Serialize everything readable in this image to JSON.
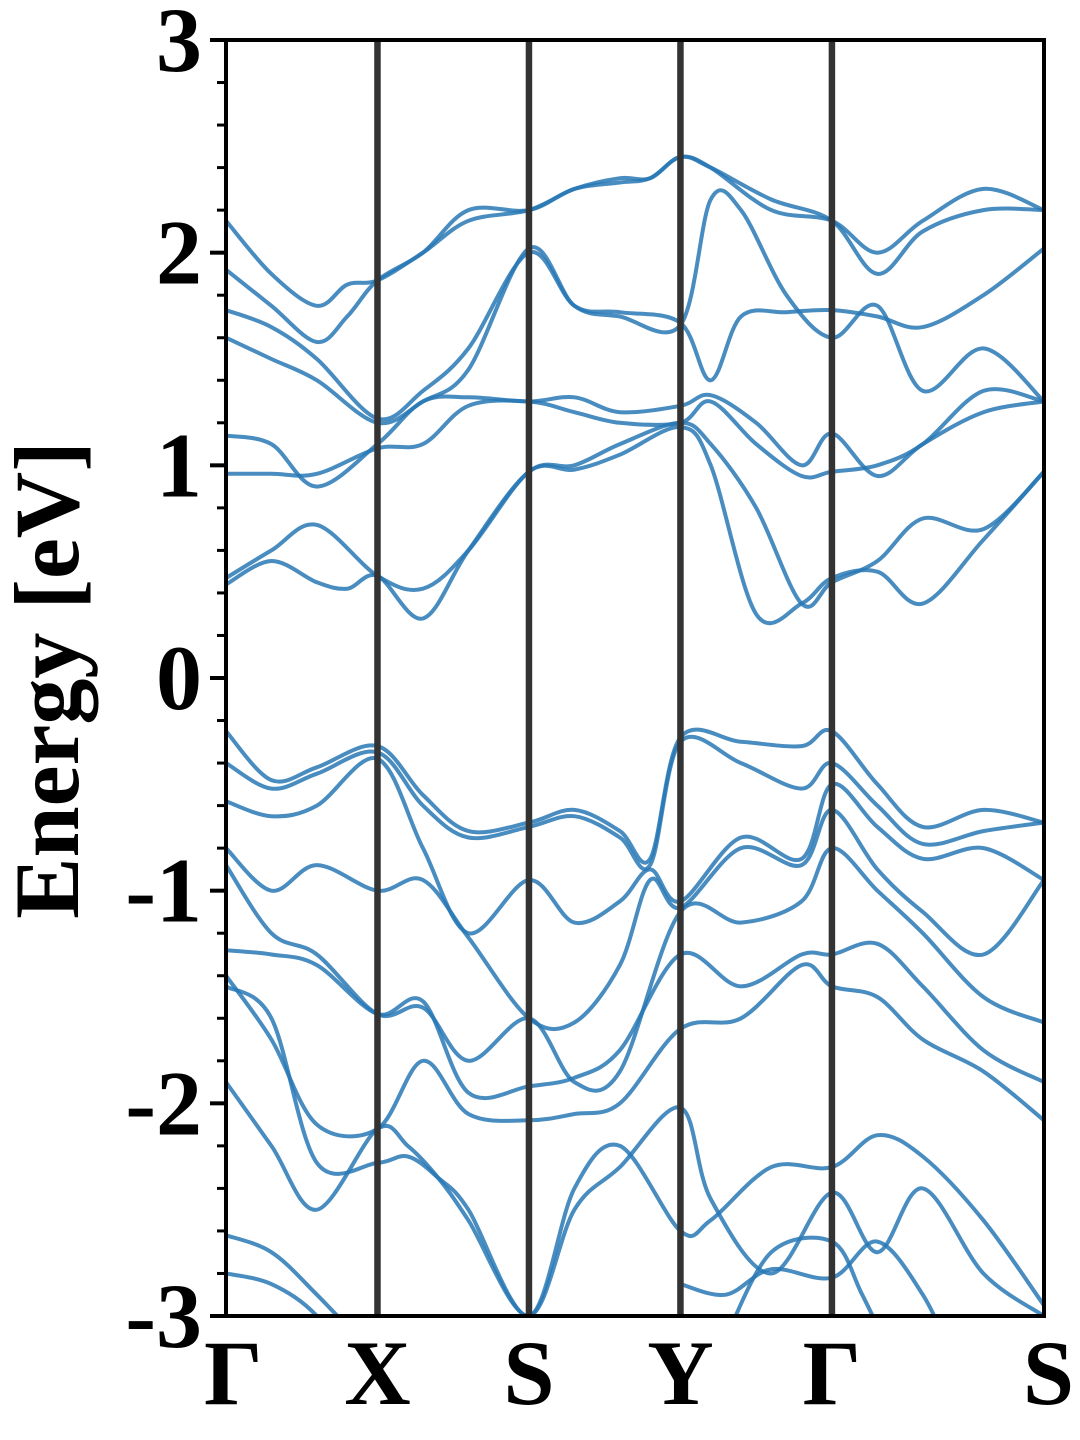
{
  "chart_data": {
    "type": "line",
    "title": "",
    "xlabel": "",
    "ylabel": "Energy [eV]",
    "ylim": [
      -3,
      3
    ],
    "yticks": [
      -3,
      -2,
      -1,
      0,
      1,
      2,
      3
    ],
    "ytick_labels": [
      "-3",
      "-2",
      "-1",
      "0",
      "1",
      "2",
      "3"
    ],
    "y_minor_step": 0.2,
    "grid": false,
    "legend": "none",
    "kpath": {
      "labels": [
        "Γ",
        "X",
        "S",
        "Y",
        "Γ",
        "S"
      ],
      "positions": [
        0,
        1,
        2,
        3,
        4,
        5.4
      ]
    },
    "band_color": "#2878b5",
    "hsp_line_color": "#333333",
    "series": [
      {
        "x": [
          0,
          0.3,
          0.6,
          0.8,
          1,
          1.3,
          1.6,
          2,
          2.3,
          2.6,
          2.8,
          3,
          3.2,
          3.6,
          4,
          4.3,
          4.6,
          5,
          5.4
        ],
        "values": [
          2.15,
          1.9,
          1.75,
          1.85,
          1.87,
          2.0,
          2.15,
          2.2,
          2.3,
          2.35,
          2.35,
          2.45,
          2.4,
          2.2,
          2.15,
          2.0,
          2.15,
          2.3,
          2.2
        ]
      },
      {
        "x": [
          0,
          0.3,
          0.6,
          0.8,
          1,
          1.3,
          1.6,
          2,
          2.3,
          2.6,
          2.8,
          3,
          3.2,
          3.6,
          4,
          4.3,
          4.6,
          5,
          5.4
        ],
        "values": [
          1.92,
          1.75,
          1.58,
          1.7,
          1.87,
          2.0,
          2.2,
          2.2,
          2.3,
          2.33,
          2.35,
          2.45,
          2.4,
          2.25,
          2.15,
          1.9,
          2.1,
          2.2,
          2.2
        ]
      },
      {
        "x": [
          0,
          0.3,
          0.6,
          1,
          1.3,
          1.6,
          2,
          2.3,
          2.6,
          3,
          3.2,
          3.4,
          3.7,
          4,
          4.3,
          4.6,
          5,
          5.4
        ],
        "values": [
          1.73,
          1.65,
          1.5,
          1.22,
          1.35,
          1.55,
          2.0,
          1.75,
          1.72,
          1.67,
          1.4,
          1.7,
          1.72,
          1.73,
          1.7,
          1.65,
          1.8,
          2.02
        ]
      },
      {
        "x": [
          0,
          0.3,
          0.6,
          1,
          1.3,
          1.6,
          2,
          2.3,
          2.6,
          3,
          3.2,
          3.4,
          3.7,
          4,
          4.3,
          4.6,
          5,
          5.4
        ],
        "values": [
          1.6,
          1.5,
          1.4,
          1.2,
          1.3,
          1.45,
          2.02,
          1.75,
          1.7,
          1.66,
          2.25,
          2.2,
          1.8,
          1.6,
          1.75,
          1.35,
          1.55,
          1.3
        ]
      },
      {
        "x": [
          0,
          0.3,
          0.6,
          1,
          1.3,
          1.6,
          2,
          2.3,
          2.6,
          3,
          3.2,
          3.5,
          3.8,
          4,
          4.3,
          4.6,
          5,
          5.4
        ],
        "values": [
          1.14,
          1.1,
          0.9,
          1.1,
          1.3,
          1.32,
          1.3,
          1.32,
          1.25,
          1.28,
          1.33,
          1.2,
          1.0,
          1.15,
          0.95,
          1.1,
          1.25,
          1.3
        ]
      },
      {
        "x": [
          0,
          0.3,
          0.6,
          1,
          1.3,
          1.6,
          2,
          2.3,
          2.6,
          3,
          3.2,
          3.5,
          3.8,
          4,
          4.3,
          4.6,
          5,
          5.4
        ],
        "values": [
          0.96,
          0.96,
          0.96,
          1.08,
          1.1,
          1.28,
          1.3,
          1.25,
          1.2,
          1.2,
          1.3,
          1.1,
          0.95,
          0.97,
          1.0,
          1.1,
          1.35,
          1.3
        ]
      },
      {
        "x": [
          0,
          0.3,
          0.6,
          1,
          1.3,
          1.6,
          2,
          2.3,
          2.6,
          3,
          3.2,
          3.5,
          3.8,
          4,
          4.3,
          4.6,
          5,
          5.4
        ],
        "values": [
          0.47,
          0.6,
          0.72,
          0.48,
          0.42,
          0.6,
          0.97,
          1.0,
          1.1,
          1.2,
          1.1,
          0.8,
          0.35,
          0.45,
          0.55,
          0.75,
          0.7,
          0.97
        ]
      },
      {
        "x": [
          0,
          0.3,
          0.6,
          0.8,
          1,
          1.3,
          1.6,
          2,
          2.3,
          2.6,
          3,
          3.2,
          3.5,
          3.8,
          4,
          4.3,
          4.6,
          5,
          5.4
        ],
        "values": [
          0.44,
          0.55,
          0.45,
          0.42,
          0.48,
          0.28,
          0.6,
          0.97,
          0.98,
          1.05,
          1.18,
          1.0,
          0.3,
          0.35,
          0.47,
          0.5,
          0.35,
          0.65,
          0.97
        ]
      },
      {
        "x": [
          0,
          0.3,
          0.6,
          1,
          1.3,
          1.6,
          2,
          2.3,
          2.6,
          2.8,
          3,
          3.4,
          3.8,
          4,
          4.3,
          4.6,
          5,
          5.4
        ],
        "values": [
          -0.25,
          -0.48,
          -0.42,
          -0.32,
          -0.55,
          -0.72,
          -0.68,
          -0.62,
          -0.72,
          -0.85,
          -0.28,
          -0.3,
          -0.32,
          -0.25,
          -0.5,
          -0.7,
          -0.62,
          -0.68
        ]
      },
      {
        "x": [
          0,
          0.3,
          0.6,
          1,
          1.3,
          1.6,
          2,
          2.3,
          2.6,
          2.8,
          3,
          3.4,
          3.8,
          4,
          4.3,
          4.6,
          5,
          5.4
        ],
        "values": [
          -0.4,
          -0.52,
          -0.45,
          -0.35,
          -0.6,
          -0.75,
          -0.7,
          -0.65,
          -0.75,
          -0.88,
          -0.3,
          -0.4,
          -0.52,
          -0.4,
          -0.6,
          -0.78,
          -0.72,
          -0.68
        ]
      },
      {
        "x": [
          0,
          0.3,
          0.6,
          1,
          1.3,
          1.6,
          2,
          2.3,
          2.6,
          2.8,
          3,
          3.4,
          3.8,
          4,
          4.3,
          4.6,
          5,
          5.4
        ],
        "values": [
          -0.58,
          -0.65,
          -0.6,
          -0.38,
          -0.8,
          -1.2,
          -0.95,
          -1.15,
          -1.05,
          -0.9,
          -1.05,
          -0.75,
          -0.85,
          -0.5,
          -0.7,
          -0.85,
          -0.8,
          -0.95
        ]
      },
      {
        "x": [
          0,
          0.3,
          0.6,
          1,
          1.3,
          1.6,
          2,
          2.3,
          2.6,
          2.8,
          3,
          3.4,
          3.8,
          4,
          4.3,
          4.6,
          5,
          5.4
        ],
        "values": [
          -0.8,
          -1.0,
          -0.88,
          -1.0,
          -0.95,
          -1.22,
          -1.6,
          -1.62,
          -1.35,
          -0.95,
          -1.08,
          -0.8,
          -0.88,
          -0.62,
          -0.9,
          -1.1,
          -1.3,
          -0.95
        ]
      },
      {
        "x": [
          0,
          0.3,
          0.6,
          1,
          1.3,
          1.6,
          2,
          2.3,
          2.6,
          3,
          3.4,
          3.8,
          4,
          4.3,
          4.6,
          5,
          5.4
        ],
        "values": [
          -0.88,
          -1.2,
          -1.3,
          -1.58,
          -1.55,
          -1.8,
          -1.6,
          -1.9,
          -1.85,
          -1.1,
          -1.15,
          -1.05,
          -0.8,
          -1.0,
          -1.2,
          -1.5,
          -1.62
        ]
      },
      {
        "x": [
          0,
          0.3,
          0.6,
          1,
          1.3,
          1.6,
          2,
          2.3,
          2.6,
          3,
          3.4,
          3.8,
          4,
          4.3,
          4.6,
          5,
          5.4
        ],
        "values": [
          -1.28,
          -1.3,
          -1.35,
          -1.58,
          -1.52,
          -1.95,
          -1.92,
          -1.88,
          -1.75,
          -1.3,
          -1.45,
          -1.3,
          -1.3,
          -1.25,
          -1.45,
          -1.75,
          -1.9
        ]
      },
      {
        "x": [
          0,
          0.3,
          0.6,
          1,
          1.3,
          1.6,
          2,
          2.3,
          2.6,
          3,
          3.4,
          3.8,
          4,
          4.3,
          4.6,
          5,
          5.4
        ],
        "values": [
          -1.4,
          -1.7,
          -2.1,
          -2.12,
          -1.8,
          -2.05,
          -2.08,
          -2.05,
          -2.0,
          -1.65,
          -1.6,
          -1.35,
          -1.45,
          -1.5,
          -1.7,
          -1.85,
          -2.08
        ]
      },
      {
        "x": [
          0,
          0.3,
          0.6,
          1,
          1.2,
          1.4,
          1.6,
          2,
          2.3,
          2.6,
          3,
          3.2,
          3.6,
          4,
          4.3,
          4.6,
          5,
          5.4
        ],
        "values": [
          -1.45,
          -1.6,
          -2.28,
          -2.28,
          -2.25,
          -2.35,
          -2.5,
          -3.0,
          -2.4,
          -2.2,
          -2.6,
          -2.55,
          -2.3,
          -2.3,
          -2.15,
          -2.25,
          -2.55,
          -2.95
        ]
      },
      {
        "x": [
          0,
          0.3,
          0.6,
          1,
          1.2,
          1.4,
          1.6,
          2,
          2.3,
          2.6,
          3,
          3.2,
          3.6,
          4,
          4.3,
          4.6,
          5,
          5.4
        ],
        "values": [
          -1.9,
          -2.2,
          -2.5,
          -2.12,
          -2.2,
          -2.35,
          -2.55,
          -3.0,
          -2.5,
          -2.3,
          -2.02,
          -2.45,
          -2.8,
          -2.42,
          -2.7,
          -2.4,
          -2.8,
          -3.0
        ]
      },
      {
        "x": [
          0,
          0.3,
          0.6,
          1
        ],
        "values": [
          -2.62,
          -2.7,
          -2.9,
          -3.2
        ]
      },
      {
        "x": [
          0,
          0.3,
          0.6,
          0.9
        ],
        "values": [
          -2.8,
          -2.85,
          -3.0,
          -3.3
        ]
      },
      {
        "x": [
          3,
          3.3,
          3.6,
          4,
          4.3,
          4.6,
          4.8
        ],
        "values": [
          -2.85,
          -2.9,
          -2.78,
          -2.82,
          -2.65,
          -2.9,
          -3.2
        ]
      },
      {
        "x": [
          3.3,
          3.6,
          4,
          4.2,
          4.4
        ],
        "values": [
          -3.1,
          -2.7,
          -2.65,
          -2.9,
          -3.2
        ]
      }
    ]
  }
}
